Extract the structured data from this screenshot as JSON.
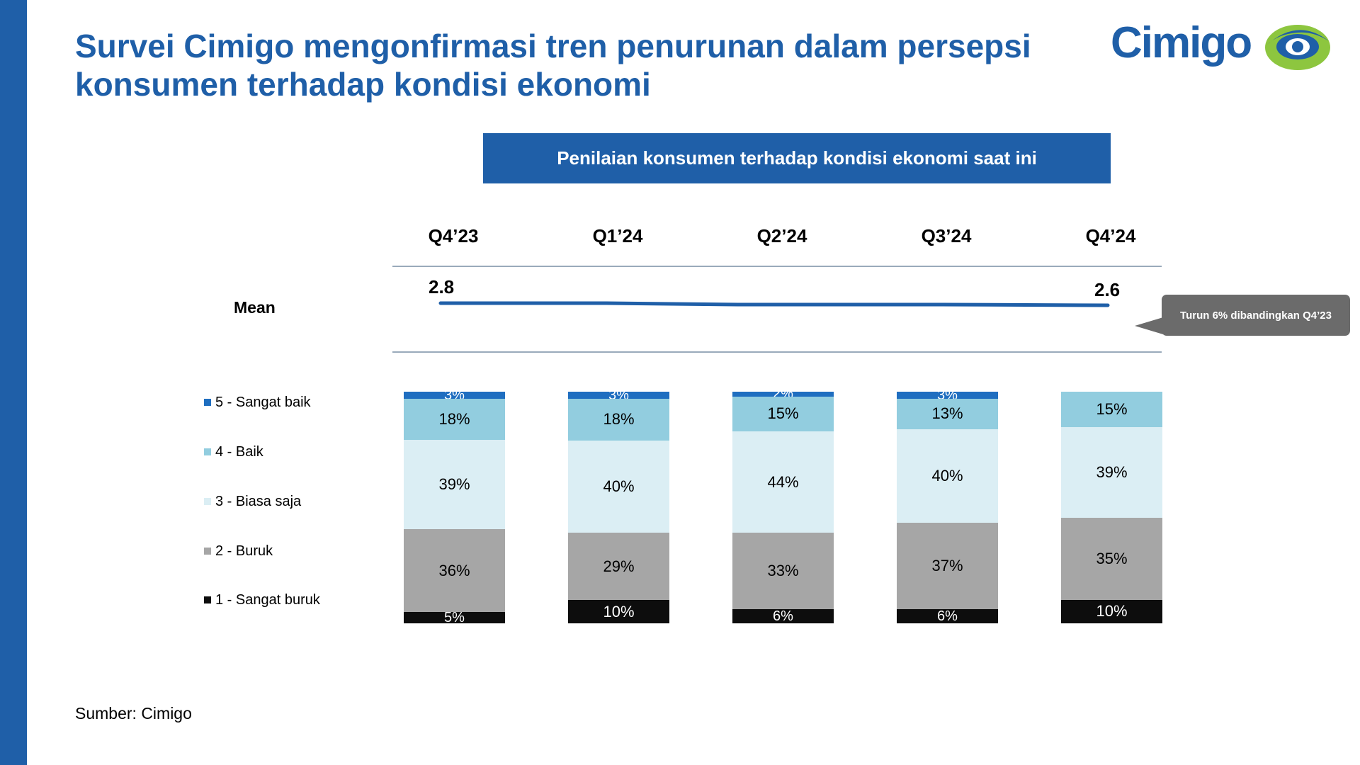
{
  "title": "Survei Cimigo mengonfirmasi tren penurunan dalam persepsi konsumen terhadap kondisi ekonomi",
  "logo": {
    "text": "Cimigo",
    "colors": {
      "text": "#1f5fa8",
      "eye_green": "#8dc63f",
      "eye_blue": "#1f5fa8"
    }
  },
  "chart_banner": "Penilaian konsumen terhadap kondisi ekonomi saat ini",
  "mean": {
    "label": "Mean",
    "start_label": "2.8",
    "end_label": "2.6",
    "callout": "Turun 6% dibandingkan Q4’23"
  },
  "source": "Sumber: Cimigo",
  "colors": {
    "brand_blue": "#1f5fa8",
    "sangat_baik": "#1f6ec0",
    "baik": "#92cddf",
    "biasa_saja": "#dbeef4",
    "buruk": "#a6a6a6",
    "sangat_buruk": "#0d0d0d",
    "callout": "#6b6b6b"
  },
  "chart_data": {
    "type": "bar",
    "stacked": true,
    "percent": true,
    "categories": [
      "Q4’23",
      "Q1’24",
      "Q2’24",
      "Q3’24",
      "Q4’24"
    ],
    "series": [
      {
        "name": "5 - Sangat baik",
        "values": [
          3,
          3,
          2,
          3,
          0
        ],
        "labels": [
          "3%",
          "3%",
          "2%",
          "3%",
          ""
        ]
      },
      {
        "name": "4 - Baik",
        "values": [
          18,
          18,
          15,
          13,
          15
        ],
        "labels": [
          "18%",
          "18%",
          "15%",
          "13%",
          "15%"
        ]
      },
      {
        "name": "3 - Biasa saja",
        "values": [
          39,
          40,
          44,
          40,
          39
        ],
        "labels": [
          "39%",
          "40%",
          "44%",
          "40%",
          "39%"
        ]
      },
      {
        "name": "2 - Buruk",
        "values": [
          36,
          29,
          33,
          37,
          35
        ],
        "labels": [
          "36%",
          "29%",
          "33%",
          "37%",
          "35%"
        ]
      },
      {
        "name": "1 - Sangat buruk",
        "values": [
          5,
          10,
          6,
          6,
          10
        ],
        "labels": [
          "5%",
          "10%",
          "6%",
          "6%",
          "10%"
        ]
      }
    ],
    "mean_series": {
      "values": [
        2.8,
        2.8,
        2.8,
        2.8,
        2.6
      ]
    },
    "legend": "left"
  }
}
